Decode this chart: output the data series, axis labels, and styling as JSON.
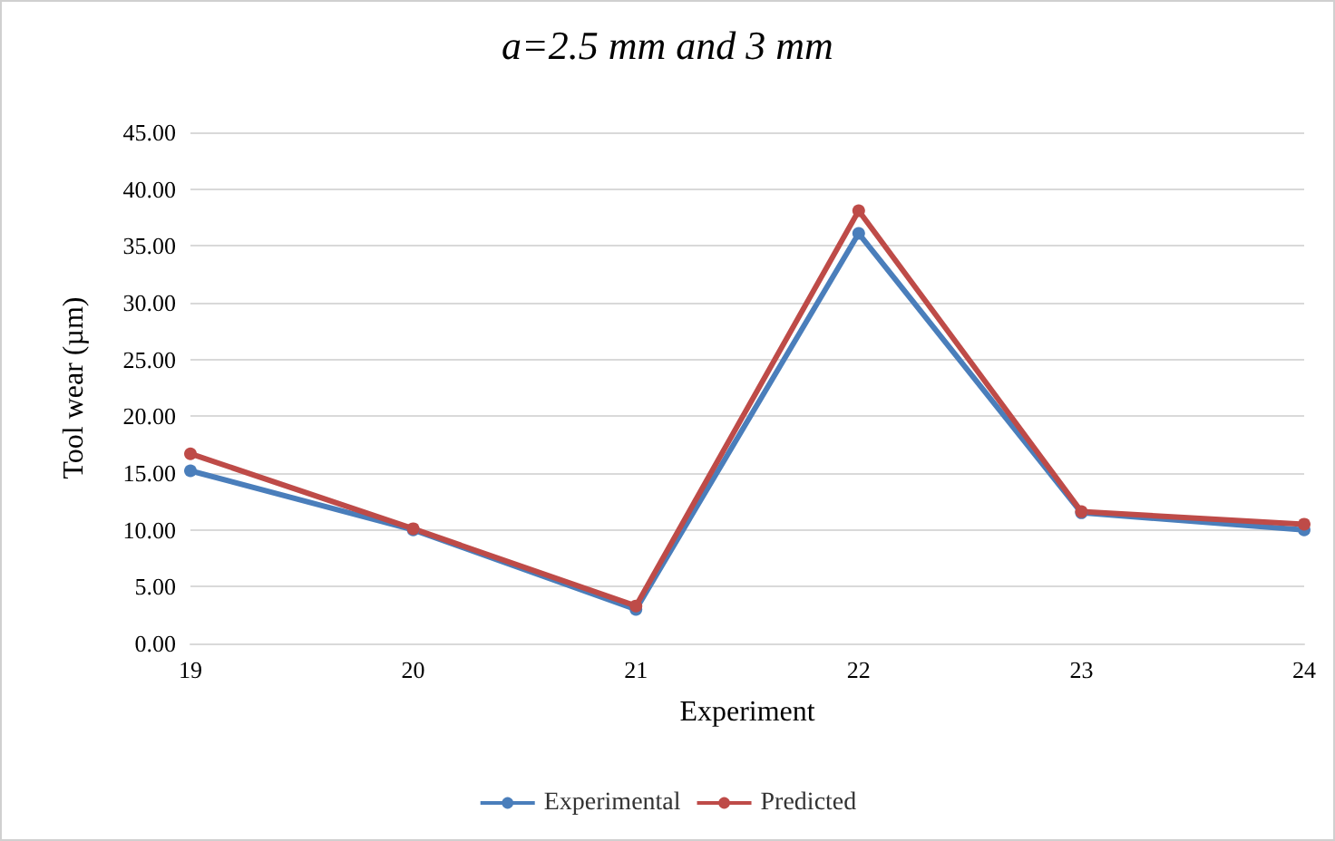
{
  "chart_data": {
    "type": "line",
    "title": "a=2.5 mm and 3 mm",
    "xlabel": "Experiment",
    "ylabel": "Tool wear (µm)",
    "categories": [
      "19",
      "20",
      "21",
      "22",
      "23",
      "24"
    ],
    "series": [
      {
        "name": "Experimental",
        "color": "#4a7ebb",
        "values": [
          15.2,
          10.0,
          3.0,
          36.1,
          11.5,
          10.0
        ]
      },
      {
        "name": "Predicted",
        "color": "#be4b48",
        "values": [
          16.7,
          10.1,
          3.3,
          38.1,
          11.6,
          10.5
        ]
      }
    ],
    "ylim": [
      0,
      45
    ],
    "yticks": [
      {
        "value": 0,
        "label": "0.00"
      },
      {
        "value": 5,
        "label": "5.00"
      },
      {
        "value": 10,
        "label": "10.00"
      },
      {
        "value": 15,
        "label": "15.00"
      },
      {
        "value": 20,
        "label": "20.00"
      },
      {
        "value": 25,
        "label": "25.00"
      },
      {
        "value": 30,
        "label": "30.00"
      },
      {
        "value": 35,
        "label": "35.00"
      },
      {
        "value": 40,
        "label": "40.00"
      },
      {
        "value": 45,
        "label": "45.00"
      }
    ],
    "grid": "y",
    "legend": "bottom",
    "marker": "circle",
    "line_style": "solid"
  }
}
